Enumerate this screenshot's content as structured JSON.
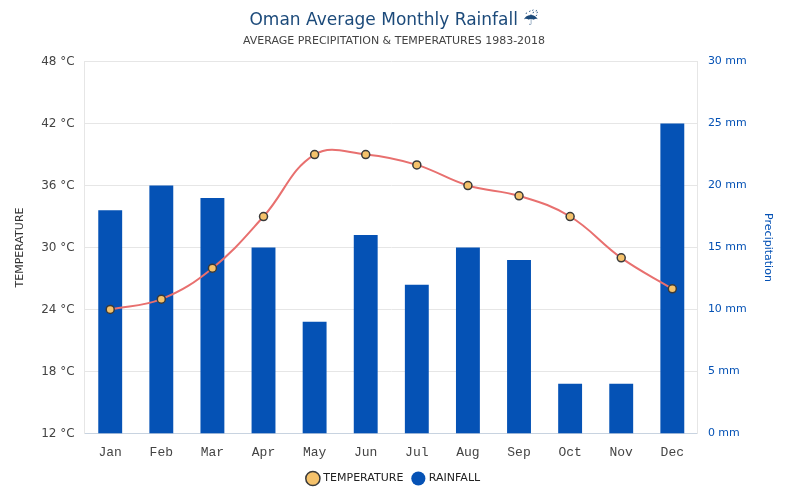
{
  "chart_data": {
    "type": "bar",
    "title": "Oman Average Monthly Rainfall ☔",
    "subtitle": "AVERAGE PRECIPITATION & TEMPERATURES 1983-2018",
    "categories": [
      "Jan",
      "Feb",
      "Mar",
      "Apr",
      "May",
      "Jun",
      "Jul",
      "Aug",
      "Sep",
      "Oct",
      "Nov",
      "Dec"
    ],
    "series": [
      {
        "name": "TEMPERATURE",
        "type": "line",
        "color": "#e8706f",
        "marker": "circle",
        "line_style": "solid",
        "values": [
          24,
          25,
          28,
          33,
          39,
          39,
          38,
          36,
          35,
          33,
          29,
          26
        ]
      },
      {
        "name": "RAINFALL",
        "type": "bar",
        "color": "#0552b5",
        "axis": "y2",
        "values": [
          18,
          20,
          19,
          15,
          9,
          16,
          12,
          15,
          14,
          4,
          4,
          25
        ]
      }
    ],
    "y_label": "TEMPERATURE",
    "y2_label": "Precipitation",
    "ylim": [
      12,
      48
    ],
    "yticks": [
      {
        "value": 12,
        "label": "12 °C"
      },
      {
        "value": 18,
        "label": "18 °C"
      },
      {
        "value": 24,
        "label": "24 °C"
      },
      {
        "value": 30,
        "label": "30 °C"
      },
      {
        "value": 36,
        "label": "36 °C"
      },
      {
        "value": 42,
        "label": "42 °C"
      },
      {
        "value": 48,
        "label": "48 °C"
      }
    ],
    "y2lim": [
      0,
      30
    ],
    "y2ticks": [
      {
        "value": 0,
        "label": "0 mm"
      },
      {
        "value": 5,
        "label": "5 mm"
      },
      {
        "value": 10,
        "label": "10 mm"
      },
      {
        "value": 15,
        "label": "15 mm"
      },
      {
        "value": 20,
        "label": "20 mm"
      },
      {
        "value": 25,
        "label": "25 mm"
      },
      {
        "value": 30,
        "label": "30 mm"
      }
    ],
    "grid": true,
    "legend": "bottom"
  }
}
